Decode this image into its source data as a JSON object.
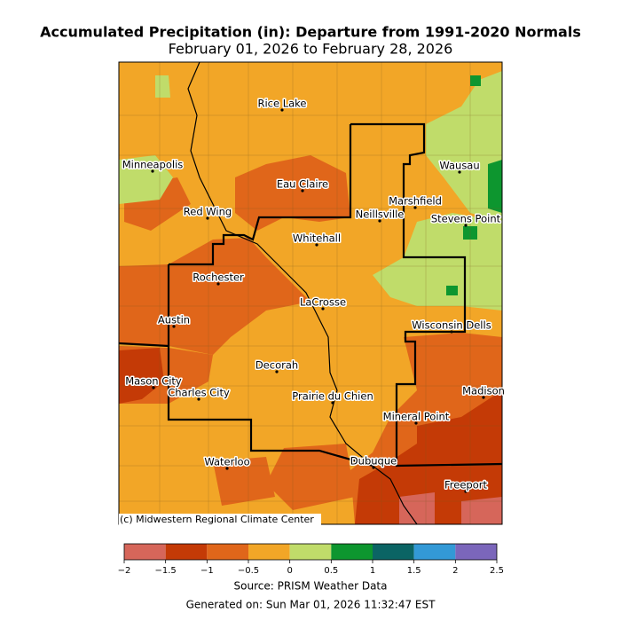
{
  "title": "Accumulated Precipitation (in): Departure from 1991-2020 Normals",
  "subtitle": "February 01, 2026 to February 28, 2026",
  "map": {
    "cities": [
      "Rice Lake",
      "Minneapolis",
      "Eau Claire",
      "Wausau",
      "Marshfield",
      "Red Wing",
      "Neillsville",
      "Stevens Point",
      "Whitehall",
      "Rochester",
      "LaCrosse",
      "Austin",
      "Wisconsin Dells",
      "Decorah",
      "Mason City",
      "Madison",
      "Charles City",
      "Prairie du Chien",
      "Mineral Point",
      "Dubuque",
      "Waterloo",
      "Freeport"
    ],
    "credit": "(c) Midwestern Regional Climate Center"
  },
  "colorbar": {
    "ticks": [
      {
        "value": -2,
        "label": "−2"
      },
      {
        "value": -1.5,
        "label": "−1.5"
      },
      {
        "value": -1,
        "label": "−1"
      },
      {
        "value": -0.5,
        "label": "−0.5"
      },
      0,
      0.5,
      1,
      1.5,
      2,
      2.5
    ],
    "colors": [
      "#d6665a",
      "#c43a06",
      "#e0661a",
      "#f2a627",
      "#c0dc6a",
      "#0d962f",
      "#0b6464",
      "#3399d6",
      "#7b66bb"
    ]
  },
  "source": "Source: PRISM Weather Data",
  "generated": "Generated on: Sun Mar 01, 2026 11:32:47 EST"
}
